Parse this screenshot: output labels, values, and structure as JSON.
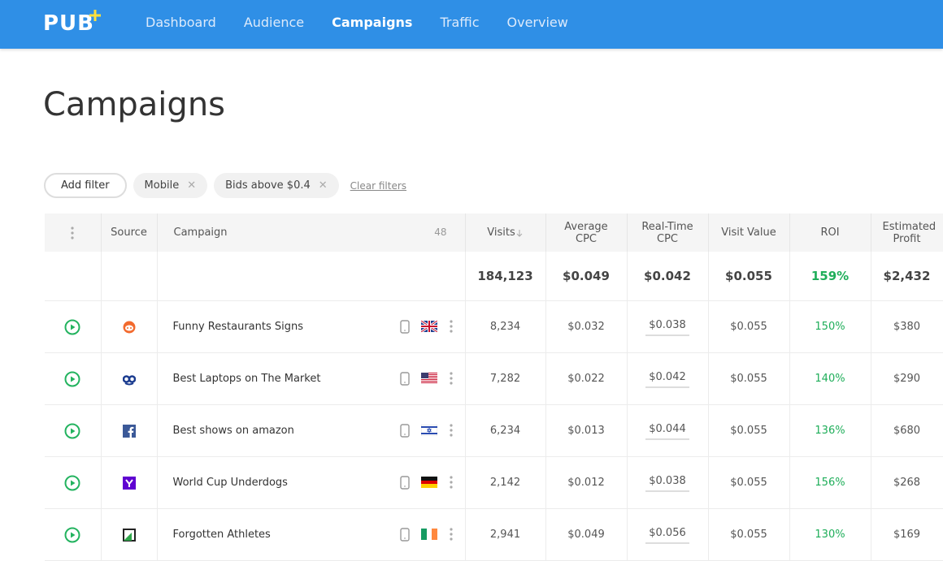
{
  "header": {
    "logo": "PUB",
    "nav": [
      "Dashboard",
      "Audience",
      "Campaigns",
      "Traffic",
      "Overview"
    ]
  },
  "page_title": "Campaigns",
  "filters": {
    "add": "Add filter",
    "chips": [
      "Mobile",
      "Bids above $0.4"
    ],
    "clear": "Clear filters"
  },
  "table": {
    "columns": [
      "Source",
      "Campaign",
      "48",
      "Visits",
      "Average CPC",
      "Real-Time CPC",
      "Visit Value",
      "ROI",
      "Estimated Profit"
    ],
    "totals": [
      "184,123",
      "$0.049",
      "$0.042",
      "$0.055",
      "159%",
      "$2,432"
    ],
    "rows": [
      [
        "Funny Restaurants Signs",
        "8,234",
        "$0.032",
        "$0.038",
        "$0.055",
        "150%",
        "$380"
      ],
      [
        "Best Laptops on The Market",
        "7,282",
        "$0.022",
        "$0.042",
        "$0.055",
        "140%",
        "$290"
      ],
      [
        "Best shows on amazon",
        "6,234",
        "$0.013",
        "$0.044",
        "$0.055",
        "136%",
        "$680"
      ],
      [
        "World Cup Underdogs",
        "2,142",
        "$0.012",
        "$0.038",
        "$0.055",
        "156%",
        "$268"
      ],
      [
        "Forgotten Athletes",
        "2,941",
        "$0.049",
        "$0.056",
        "$0.055",
        "130%",
        "$169"
      ]
    ]
  }
}
